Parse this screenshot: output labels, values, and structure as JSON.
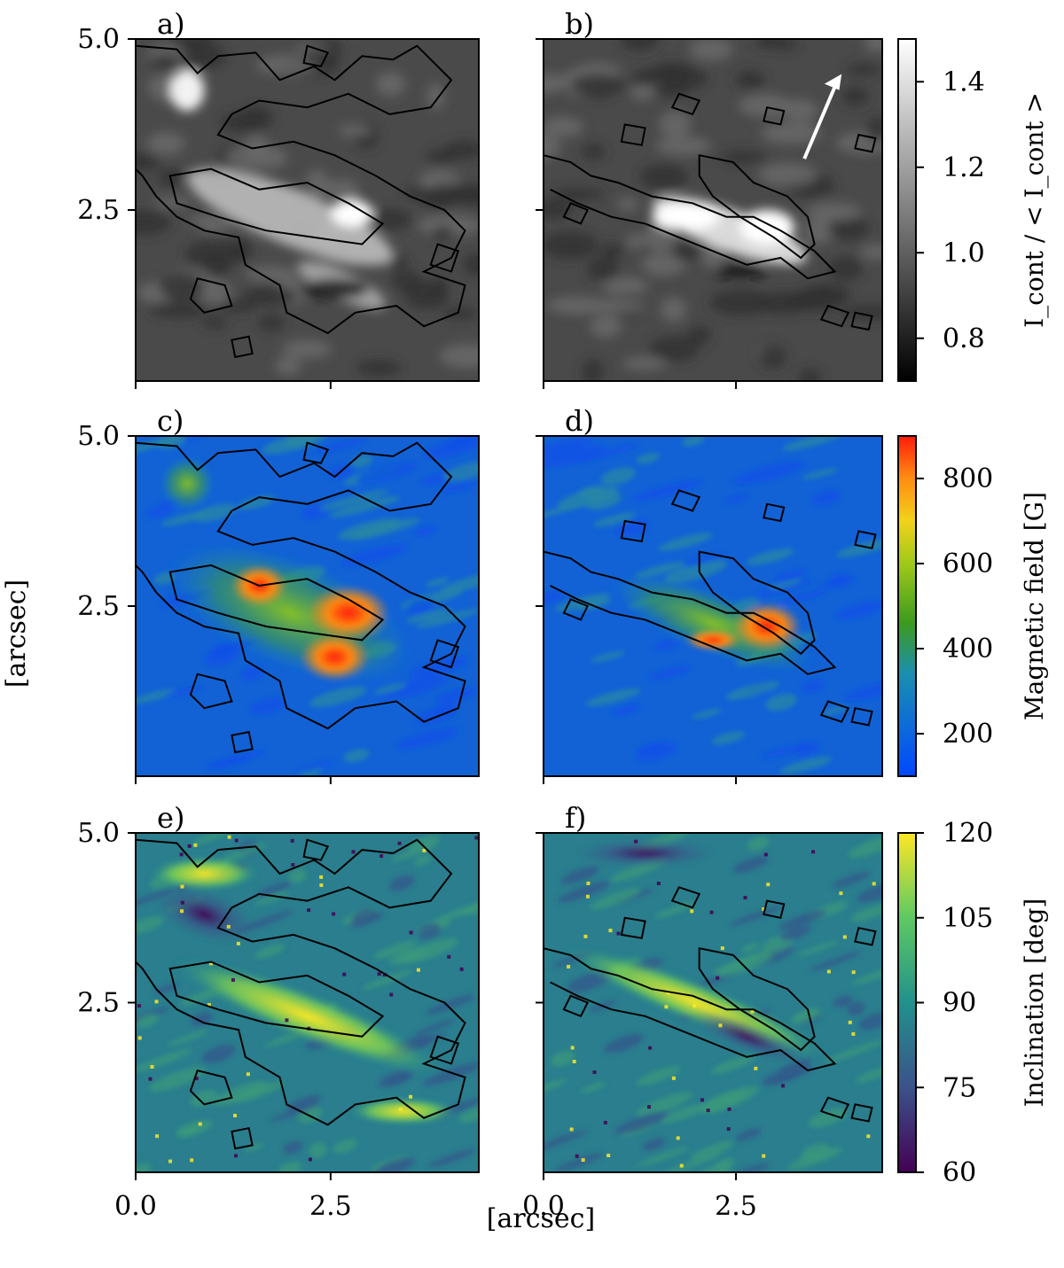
{
  "figure": {
    "shared_xlabel": "[arcsec]",
    "shared_ylabel": "[arcsec]"
  },
  "chart_data": [
    {
      "id": "a",
      "type": "heatmap",
      "panel_label": "a)",
      "colormap": "gray",
      "xlim": [
        0,
        4.4
      ],
      "ylim": [
        0,
        5.0
      ],
      "xticks": [
        "0.0",
        "2.5"
      ],
      "yticks": [
        "2.5",
        "5.0"
      ],
      "xtick_values": [
        0,
        2.5
      ],
      "ytick_values": [
        2.5,
        5.0
      ],
      "clim": [
        0.7,
        1.5
      ],
      "show_x_ticklabels": false,
      "show_y_ticklabels": true
    },
    {
      "id": "b",
      "type": "heatmap",
      "panel_label": "b)",
      "colormap": "gray",
      "xlim": [
        0,
        4.4
      ],
      "ylim": [
        0,
        5.0
      ],
      "xticks": [
        "0.0",
        "2.5"
      ],
      "yticks": [
        "2.5",
        "5.0"
      ],
      "xtick_values": [
        0,
        2.5
      ],
      "ytick_values": [
        2.5,
        5.0
      ],
      "clim": [
        0.7,
        1.5
      ],
      "show_x_ticklabels": false,
      "show_y_ticklabels": false,
      "annotation": "white arrow pointing up-right",
      "colorbar": {
        "label": "I_cont / < I_cont >",
        "ticks": [
          "0.8",
          "1.0",
          "1.2",
          "1.4"
        ],
        "tick_values": [
          0.8,
          1.0,
          1.2,
          1.4
        ],
        "range": [
          0.7,
          1.5
        ]
      }
    },
    {
      "id": "c",
      "type": "heatmap",
      "panel_label": "c)",
      "colormap": "jet",
      "xlim": [
        0,
        4.4
      ],
      "ylim": [
        0,
        5.0
      ],
      "xticks": [
        "0.0",
        "2.5"
      ],
      "yticks": [
        "2.5",
        "5.0"
      ],
      "xtick_values": [
        0,
        2.5
      ],
      "ytick_values": [
        2.5,
        5.0
      ],
      "clim": [
        100,
        900
      ],
      "show_x_ticklabels": false,
      "show_y_ticklabels": true
    },
    {
      "id": "d",
      "type": "heatmap",
      "panel_label": "d)",
      "colormap": "jet",
      "xlim": [
        0,
        4.4
      ],
      "ylim": [
        0,
        5.0
      ],
      "xticks": [
        "0.0",
        "2.5"
      ],
      "yticks": [
        "2.5",
        "5.0"
      ],
      "xtick_values": [
        0,
        2.5
      ],
      "ytick_values": [
        2.5,
        5.0
      ],
      "clim": [
        100,
        900
      ],
      "show_x_ticklabels": false,
      "show_y_ticklabels": false,
      "colorbar": {
        "label": "Magnetic field [G]",
        "ticks": [
          "200",
          "400",
          "600",
          "800"
        ],
        "tick_values": [
          200,
          400,
          600,
          800
        ],
        "range": [
          100,
          900
        ]
      }
    },
    {
      "id": "e",
      "type": "heatmap",
      "panel_label": "e)",
      "colormap": "viridis",
      "xlim": [
        0,
        4.4
      ],
      "ylim": [
        0,
        5.0
      ],
      "xticks": [
        "0.0",
        "2.5"
      ],
      "yticks": [
        "2.5",
        "5.0"
      ],
      "xtick_values": [
        0,
        2.5
      ],
      "ytick_values": [
        2.5,
        5.0
      ],
      "clim": [
        60,
        120
      ],
      "show_x_ticklabels": true,
      "show_y_ticklabels": true
    },
    {
      "id": "f",
      "type": "heatmap",
      "panel_label": "f)",
      "colormap": "viridis",
      "xlim": [
        0,
        4.4
      ],
      "ylim": [
        0,
        5.0
      ],
      "xticks": [
        "0.0",
        "2.5"
      ],
      "yticks": [
        "2.5",
        "5.0"
      ],
      "xtick_values": [
        0,
        2.5
      ],
      "ytick_values": [
        2.5,
        5.0
      ],
      "clim": [
        60,
        120
      ],
      "show_x_ticklabels": true,
      "show_y_ticklabels": false,
      "colorbar": {
        "label": "Inclination [deg]",
        "ticks": [
          "60",
          "75",
          "90",
          "105",
          "120"
        ],
        "tick_values": [
          60,
          75,
          90,
          105,
          120
        ],
        "range": [
          60,
          120
        ]
      }
    }
  ],
  "colors": {
    "contour": "#000000",
    "arrow": "#ffffff"
  }
}
